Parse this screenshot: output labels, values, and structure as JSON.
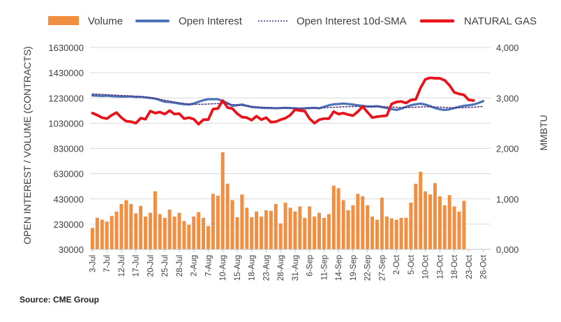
{
  "source": "Source: CME Group",
  "chart_data": {
    "type": "bar+line",
    "title": "",
    "legend_position": "top",
    "grid": true,
    "left_axis": {
      "label": "OPEN INTEREST / VOLUME (CONTRACTS)",
      "range": [
        30000,
        1630000
      ],
      "ticks": [
        "1630000",
        "1430000",
        "1230000",
        "1030000",
        "830000",
        "630000",
        "430000",
        "230000",
        "30000"
      ]
    },
    "right_axis": {
      "label": "MMBTU",
      "range": [
        0,
        4000
      ],
      "ticks": [
        "4,000",
        "3,000",
        "2,000",
        "1,000",
        "0,000"
      ]
    },
    "x_tick_labels": [
      "3-Jul",
      "7-Jul",
      "12-Jul",
      "17-Jul",
      "20-Jul",
      "25-Jul",
      "28-Jul",
      "2-Aug",
      "7-Aug",
      "10-Aug",
      "15-Aug",
      "18-Aug",
      "23-Aug",
      "28-Aug",
      "31-Aug",
      "6-Sep",
      "11-Sep",
      "14-Sep",
      "19-Sep",
      "22-Sep",
      "27-Sep",
      "2-Oct",
      "5-Oct",
      "10-Oct",
      "13-Oct",
      "18-Oct",
      "23-Oct",
      "26-Oct"
    ],
    "x_tick_index": [
      0,
      3,
      6,
      9,
      12,
      15,
      18,
      21,
      24,
      27,
      30,
      33,
      36,
      39,
      42,
      45,
      48,
      51,
      54,
      57,
      60,
      63,
      66,
      69,
      72,
      75,
      78,
      81
    ],
    "n_slots": 83,
    "series": [
      {
        "name": "Volume",
        "type": "bar",
        "axis": "left",
        "color": "#f28e3f",
        "values": [
          200000,
          280000,
          265000,
          250000,
          295000,
          330000,
          390000,
          420000,
          390000,
          315000,
          375000,
          290000,
          320000,
          490000,
          310000,
          280000,
          345000,
          290000,
          320000,
          255000,
          225000,
          290000,
          325000,
          280000,
          215000,
          470000,
          455000,
          800000,
          550000,
          420000,
          285000,
          465000,
          360000,
          285000,
          330000,
          290000,
          340000,
          335000,
          390000,
          235000,
          400000,
          360000,
          330000,
          370000,
          280000,
          370000,
          290000,
          320000,
          280000,
          310000,
          535000,
          515000,
          420000,
          340000,
          380000,
          470000,
          450000,
          380000,
          290000,
          265000,
          440000,
          290000,
          275000,
          265000,
          280000,
          280000,
          400000,
          550000,
          645000,
          490000,
          465000,
          555000,
          450000,
          380000,
          460000,
          370000,
          330000,
          415000,
          0,
          0,
          0,
          0,
          0
        ]
      },
      {
        "name": "Open Interest",
        "type": "line",
        "axis": "left",
        "color": "#4a72b5",
        "values": [
          1250000,
          1248000,
          1246000,
          1248000,
          1244000,
          1242000,
          1240000,
          1241000,
          1242000,
          1237000,
          1238000,
          1234000,
          1230000,
          1225000,
          1212000,
          1200000,
          1197000,
          1192000,
          1185000,
          1180000,
          1178000,
          1185000,
          1200000,
          1212000,
          1220000,
          1220000,
          1220000,
          1205000,
          1190000,
          1168000,
          1172000,
          1178000,
          1168000,
          1158000,
          1155000,
          1152000,
          1150000,
          1150000,
          1148000,
          1150000,
          1152000,
          1150000,
          1148000,
          1145000,
          1148000,
          1150000,
          1152000,
          1148000,
          1160000,
          1172000,
          1180000,
          1182000,
          1186000,
          1182000,
          1178000,
          1172000,
          1168000,
          1162000,
          1162000,
          1165000,
          1158000,
          1150000,
          1142000,
          1135000,
          1145000,
          1160000,
          1172000,
          1180000,
          1185000,
          1178000,
          1165000,
          1150000,
          1140000,
          1135000,
          1140000,
          1150000,
          1160000,
          1168000,
          1172000,
          1178000,
          1190000,
          1205000,
          null
        ]
      },
      {
        "name": "Open Interest 10d-SMA",
        "type": "line-dotted",
        "axis": "left",
        "color": "#4b2b80",
        "values": [
          1262000,
          1260000,
          1258000,
          1256000,
          1254000,
          1252000,
          1250000,
          1248000,
          1246000,
          1244000,
          1242000,
          1238000,
          1233000,
          1227000,
          1220000,
          1212000,
          1205000,
          1198000,
          1192000,
          1186000,
          1182000,
          1180000,
          1180000,
          1180000,
          1182000,
          1184000,
          1185000,
          1184000,
          1182000,
          1178000,
          1175000,
          1170000,
          1166000,
          1163000,
          1160000,
          1157000,
          1155000,
          1153000,
          1152000,
          1151000,
          1151000,
          1150000,
          1150000,
          1149000,
          1149000,
          1149000,
          1149000,
          1150000,
          1152000,
          1154000,
          1156000,
          1158000,
          1160000,
          1161000,
          1162000,
          1163000,
          1163000,
          1163000,
          1162000,
          1162000,
          1161000,
          1160000,
          1158000,
          1156000,
          1154000,
          1154000,
          1155000,
          1157000,
          1159000,
          1160000,
          1160000,
          1159000,
          1157000,
          1155000,
          1153000,
          1152000,
          1152000,
          1153000,
          1155000,
          1157000,
          1160000,
          1163000,
          null
        ]
      },
      {
        "name": "NATURAL GAS",
        "type": "line",
        "axis": "right",
        "color": "#e8141c",
        "values": [
          2700,
          2660,
          2610,
          2590,
          2660,
          2710,
          2610,
          2540,
          2530,
          2500,
          2600,
          2580,
          2740,
          2700,
          2720,
          2680,
          2750,
          2680,
          2690,
          2590,
          2610,
          2580,
          2480,
          2570,
          2570,
          2780,
          2790,
          2950,
          2810,
          2790,
          2690,
          2620,
          2610,
          2560,
          2640,
          2570,
          2610,
          2520,
          2530,
          2570,
          2600,
          2660,
          2770,
          2750,
          2740,
          2590,
          2500,
          2570,
          2590,
          2590,
          2730,
          2680,
          2700,
          2670,
          2650,
          2730,
          2830,
          2720,
          2610,
          2630,
          2640,
          2650,
          2880,
          2920,
          2930,
          2900,
          2960,
          2970,
          3200,
          3370,
          3400,
          3390,
          3390,
          3350,
          3250,
          3110,
          3080,
          3060,
          2960,
          2950,
          null,
          null,
          null
        ]
      }
    ]
  }
}
